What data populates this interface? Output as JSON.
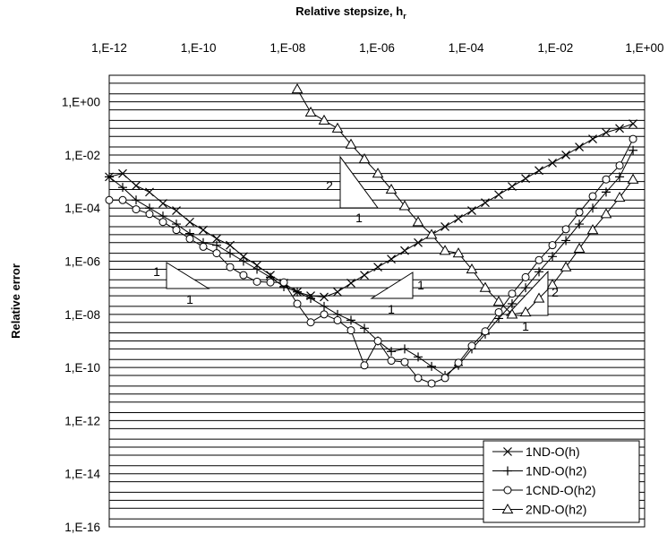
{
  "chart_data": {
    "type": "line",
    "xlabel": "Relative stepsize, h",
    "xlabel_sub": "r",
    "ylabel": "Relative error",
    "x_scale": "log",
    "y_scale": "log",
    "xlim": [
      1e-12,
      1
    ],
    "ylim": [
      1e-16,
      10
    ],
    "x_axis_position": "top",
    "x_ticks": [
      1e-12,
      1e-10,
      1e-08,
      1e-06,
      0.0001,
      0.01,
      1
    ],
    "x_tick_labels": [
      "1,E-12",
      "1,E-10",
      "1,E-08",
      "1,E-06",
      "1,E-04",
      "1,E-02",
      "1,E+00"
    ],
    "y_ticks": [
      1,
      0.01,
      0.0001,
      1e-06,
      1e-08,
      1e-10,
      1e-12,
      1e-14,
      1e-16
    ],
    "y_tick_labels": [
      "1,E+00",
      "1,E-02",
      "1,E-04",
      "1,E-06",
      "1,E-08",
      "1,E-10",
      "1,E-12",
      "1,E-14",
      "1,E-16"
    ],
    "grid": "horizontal at every 1, 2, 5 multiple of each decade",
    "legend_position": "bottom-right",
    "series": [
      {
        "name": "1ND-O(h)",
        "marker": "x",
        "x": [
          1e-12,
          2e-12,
          4e-12,
          8e-12,
          1.6e-11,
          3.2e-11,
          6.4e-11,
          1.28e-10,
          2.56e-10,
          5.12e-10,
          1.02e-09,
          2.05e-09,
          4.1e-09,
          8.2e-09,
          1.64e-08,
          3.28e-08,
          6.55e-08,
          1.31e-07,
          2.62e-07,
          5.24e-07,
          1.05e-06,
          2.1e-06,
          4.19e-06,
          8.39e-06,
          1.68e-05,
          3.36e-05,
          6.71e-05,
          0.000134,
          0.000268,
          0.000537,
          0.00107,
          0.00215,
          0.00429,
          0.00859,
          0.0172,
          0.0344,
          0.0687,
          0.137,
          0.275,
          0.55
        ],
        "y": [
          0.0015,
          0.002,
          0.0007,
          0.0004,
          0.00015,
          8e-05,
          3e-05,
          1.5e-05,
          7e-06,
          4e-06,
          1.5e-06,
          7e-07,
          3e-07,
          1.5e-07,
          7e-08,
          5e-08,
          4.5e-08,
          7e-08,
          1.5e-07,
          3e-07,
          6e-07,
          1.2e-06,
          2.5e-06,
          5e-06,
          1e-05,
          2e-05,
          4e-05,
          8e-05,
          0.00016,
          0.00032,
          0.00065,
          0.0013,
          0.0026,
          0.005,
          0.01,
          0.02,
          0.04,
          0.07,
          0.1,
          0.15
        ]
      },
      {
        "name": "1ND-O(h2)",
        "marker": "+",
        "x": [
          1e-12,
          2e-12,
          4e-12,
          8e-12,
          1.6e-11,
          3.2e-11,
          6.4e-11,
          1.28e-10,
          2.56e-10,
          5.12e-10,
          1.02e-09,
          2.05e-09,
          4.1e-09,
          8.2e-09,
          1.64e-08,
          3.28e-08,
          6.55e-08,
          1.31e-07,
          2.62e-07,
          5.24e-07,
          1.05e-06,
          2.1e-06,
          4.19e-06,
          8.39e-06,
          1.68e-05,
          3.36e-05,
          6.71e-05,
          0.000134,
          0.000268,
          0.000537,
          0.00107,
          0.00215,
          0.00429,
          0.00859,
          0.0172,
          0.0344,
          0.0687,
          0.137,
          0.275,
          0.55
        ],
        "y": [
          0.0015,
          0.0006,
          0.0002,
          0.0001,
          5e-05,
          2.5e-05,
          1.1e-05,
          5e-06,
          4e-06,
          2e-06,
          1e-06,
          5e-07,
          2.5e-07,
          1.1e-07,
          7e-08,
          4e-08,
          2e-08,
          1e-08,
          6e-09,
          3e-09,
          1e-09,
          4e-10,
          5e-10,
          2.5e-10,
          1.1e-10,
          5e-11,
          1.2e-10,
          5e-10,
          1.8e-09,
          7e-09,
          2.5e-08,
          1e-07,
          4e-07,
          1.5e-06,
          6e-06,
          2.5e-05,
          0.0001,
          0.0004,
          0.0015,
          0.015
        ]
      },
      {
        "name": "1CND-O(h2)",
        "marker": "circle",
        "x": [
          1e-12,
          2e-12,
          4e-12,
          8e-12,
          1.6e-11,
          3.2e-11,
          6.4e-11,
          1.28e-10,
          2.56e-10,
          5.12e-10,
          1.02e-09,
          2.05e-09,
          4.1e-09,
          8.2e-09,
          1.64e-08,
          3.28e-08,
          6.55e-08,
          1.31e-07,
          2.62e-07,
          5.24e-07,
          1.05e-06,
          2.1e-06,
          4.19e-06,
          8.39e-06,
          1.68e-05,
          3.36e-05,
          6.71e-05,
          0.000134,
          0.000268,
          0.000537,
          0.00107,
          0.00215,
          0.00429,
          0.00859,
          0.0172,
          0.0344,
          0.0687,
          0.137,
          0.275,
          0.55
        ],
        "y": [
          0.0002,
          0.0002,
          9e-05,
          6e-05,
          3e-05,
          1.5e-05,
          7e-06,
          3.5e-06,
          2e-06,
          6e-07,
          3e-07,
          1.7e-07,
          1.6e-07,
          1.6e-07,
          2.5e-08,
          5e-09,
          1e-08,
          6e-09,
          2.5e-09,
          1.2e-10,
          1e-09,
          1.8e-10,
          1.6e-10,
          4e-11,
          2.5e-11,
          4e-11,
          1.5e-10,
          6.5e-10,
          2.3e-09,
          1.2e-08,
          6e-08,
          2.5e-07,
          1.1e-06,
          4e-06,
          1.6e-05,
          7e-05,
          0.00028,
          0.0012,
          0.004,
          0.04
        ]
      },
      {
        "name": "2ND-O(h2)",
        "marker": "triangle",
        "x": [
          1.64e-08,
          3.28e-08,
          6.55e-08,
          1.31e-07,
          2.62e-07,
          5.24e-07,
          1.05e-06,
          2.1e-06,
          4.19e-06,
          8.39e-06,
          1.68e-05,
          3.36e-05,
          6.71e-05,
          0.000134,
          0.000268,
          0.000537,
          0.00107,
          0.00215,
          0.00429,
          0.00859,
          0.0172,
          0.0344,
          0.0687,
          0.137,
          0.275,
          0.55
        ],
        "y": [
          3,
          0.4,
          0.2,
          0.1,
          0.025,
          0.007,
          0.002,
          0.0005,
          0.00012,
          3e-05,
          1e-05,
          2.5e-06,
          2e-06,
          5e-07,
          1e-07,
          3e-08,
          1e-08,
          1.2e-08,
          4e-08,
          1.3e-07,
          6e-07,
          3e-06,
          1.5e-05,
          6e-05,
          0.00025,
          0.0012
        ]
      }
    ],
    "annotations": [
      {
        "type": "slope-triangle",
        "run_label": "1",
        "rise_label": "1",
        "rise_side": "left"
      },
      {
        "type": "slope-triangle",
        "run_label": "1",
        "rise_label": "2",
        "rise_side": "left"
      },
      {
        "type": "slope-triangle",
        "run_label": "1",
        "rise_label": "1",
        "rise_side": "right"
      },
      {
        "type": "slope-triangle",
        "run_label": "1",
        "rise_label": "2",
        "rise_side": "right"
      }
    ]
  }
}
